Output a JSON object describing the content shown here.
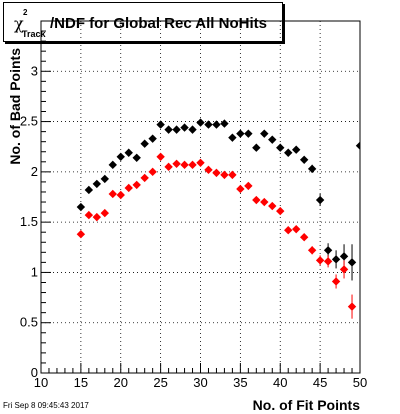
{
  "chart_data": {
    "type": "scatter",
    "title_symbol": "χ",
    "title_sup": "2",
    "title_sub": "Track",
    "title_rest": "/NDF for Global Rec All NoHits",
    "xlabel": "No. of Fit Points",
    "ylabel": "No. of Bad Points",
    "xlim": [
      10,
      50
    ],
    "ylim": [
      0,
      3.5
    ],
    "x_ticks": [
      10,
      15,
      20,
      25,
      30,
      35,
      40,
      45,
      50
    ],
    "y_ticks": [
      0,
      0.5,
      1,
      1.5,
      2,
      2.5,
      3
    ],
    "y_tick_labels": [
      "0",
      "0.5",
      "1",
      "1.5",
      "2",
      "2.5",
      "3"
    ],
    "grid": true,
    "legend": "none",
    "series": [
      {
        "color": "#000000",
        "x": [
          15,
          16,
          17,
          18,
          19,
          20,
          21,
          22,
          23,
          24,
          25,
          26,
          27,
          28,
          29,
          30,
          31,
          32,
          33,
          34,
          35,
          36,
          37,
          38,
          39,
          40,
          41,
          42,
          43,
          44,
          45,
          46,
          47,
          48,
          49,
          50
        ],
        "y": [
          1.65,
          1.82,
          1.88,
          1.93,
          2.07,
          2.15,
          2.19,
          2.14,
          2.28,
          2.33,
          2.47,
          2.42,
          2.42,
          2.44,
          2.42,
          2.49,
          2.47,
          2.47,
          2.48,
          2.34,
          2.38,
          2.38,
          2.24,
          2.38,
          2.32,
          2.24,
          2.19,
          2.22,
          2.12,
          2.03,
          1.72,
          1.22,
          1.13,
          1.16,
          1.1,
          2.26
        ],
        "err": [
          0.02,
          0.02,
          0.02,
          0.02,
          0.02,
          0.02,
          0.02,
          0.02,
          0.02,
          0.02,
          0.02,
          0.02,
          0.02,
          0.02,
          0.02,
          0.02,
          0.02,
          0.02,
          0.02,
          0.02,
          0.02,
          0.02,
          0.02,
          0.02,
          0.02,
          0.02,
          0.02,
          0.03,
          0.03,
          0.04,
          0.06,
          0.07,
          0.09,
          0.12,
          0.18,
          1.1
        ]
      },
      {
        "color": "#ff0000",
        "x": [
          15,
          16,
          17,
          18,
          19,
          20,
          21,
          22,
          23,
          24,
          25,
          26,
          27,
          28,
          29,
          30,
          31,
          32,
          33,
          34,
          35,
          36,
          37,
          38,
          39,
          40,
          41,
          42,
          43,
          44,
          45,
          46,
          47,
          48,
          49
        ],
        "y": [
          1.38,
          1.57,
          1.55,
          1.59,
          1.78,
          1.77,
          1.84,
          1.87,
          1.94,
          2.0,
          2.15,
          2.05,
          2.08,
          2.07,
          2.07,
          2.09,
          2.02,
          1.99,
          1.97,
          1.97,
          1.83,
          1.86,
          1.72,
          1.7,
          1.66,
          1.61,
          1.42,
          1.43,
          1.35,
          1.22,
          1.12,
          1.11,
          0.91,
          1.03,
          0.66
        ],
        "err": [
          0.02,
          0.02,
          0.02,
          0.02,
          0.02,
          0.02,
          0.02,
          0.02,
          0.02,
          0.02,
          0.02,
          0.02,
          0.02,
          0.02,
          0.02,
          0.02,
          0.02,
          0.02,
          0.02,
          0.02,
          0.02,
          0.02,
          0.02,
          0.02,
          0.02,
          0.02,
          0.03,
          0.03,
          0.03,
          0.04,
          0.05,
          0.06,
          0.07,
          0.09,
          0.12
        ]
      }
    ]
  },
  "footer": "Fri Sep  8 09:45:43 2017"
}
